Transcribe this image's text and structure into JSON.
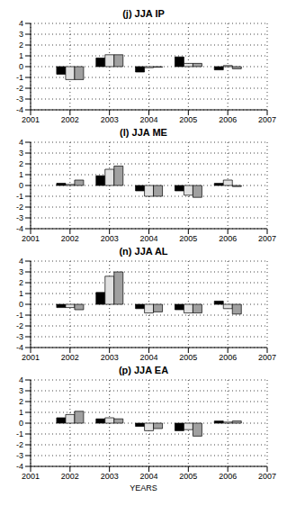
{
  "chart_data": [
    {
      "type": "bar",
      "title": "(j) JJA IP",
      "x": [
        2002,
        2003,
        2004,
        2005,
        2006
      ],
      "series": [
        {
          "color": "#000000",
          "values": [
            -0.7,
            0.8,
            -0.5,
            0.9,
            -0.3
          ]
        },
        {
          "color": "#e0e0e0",
          "values": [
            -1.2,
            1.1,
            -0.1,
            0.3,
            0.1
          ]
        },
        {
          "color": "#a0a0a0",
          "values": [
            -1.2,
            1.1,
            -0.05,
            0.3,
            -0.2
          ]
        }
      ],
      "xlim": [
        2001,
        2007
      ],
      "xticks": [
        2001,
        2002,
        2003,
        2004,
        2005,
        2006,
        2007
      ],
      "ylim": [
        -4,
        4
      ],
      "yticks": [
        -4,
        -3,
        -2,
        -1,
        0,
        1,
        2,
        3,
        4
      ],
      "grid": true
    },
    {
      "type": "bar",
      "title": "(l) JJA ME",
      "x": [
        2002,
        2003,
        2004,
        2005,
        2006
      ],
      "series": [
        {
          "color": "#000000",
          "values": [
            0.2,
            0.9,
            -0.5,
            -0.5,
            0.2
          ]
        },
        {
          "color": "#e0e0e0",
          "values": [
            0.1,
            1.5,
            -1.0,
            -0.9,
            0.5
          ]
        },
        {
          "color": "#a0a0a0",
          "values": [
            0.5,
            1.8,
            -1.0,
            -1.1,
            -0.1
          ]
        }
      ],
      "xlim": [
        2001,
        2007
      ],
      "xticks": [
        2001,
        2002,
        2003,
        2004,
        2005,
        2006,
        2007
      ],
      "ylim": [
        -4,
        4
      ],
      "yticks": [
        -4,
        -3,
        -2,
        -1,
        0,
        1,
        2,
        3,
        4
      ],
      "grid": true
    },
    {
      "type": "bar",
      "title": "(n) JJA AL",
      "x": [
        2002,
        2003,
        2004,
        2005,
        2006
      ],
      "series": [
        {
          "color": "#000000",
          "values": [
            -0.3,
            1.1,
            -0.4,
            -0.5,
            0.3
          ]
        },
        {
          "color": "#e0e0e0",
          "values": [
            -0.3,
            2.6,
            -0.8,
            -0.8,
            -0.4
          ]
        },
        {
          "color": "#a0a0a0",
          "values": [
            -0.5,
            3.0,
            -0.7,
            -0.8,
            -0.9
          ]
        }
      ],
      "xlim": [
        2001,
        2007
      ],
      "xticks": [
        2001,
        2002,
        2003,
        2004,
        2005,
        2006,
        2007
      ],
      "ylim": [
        -4,
        4
      ],
      "yticks": [
        -4,
        -3,
        -2,
        -1,
        0,
        1,
        2,
        3,
        4
      ],
      "grid": true
    },
    {
      "type": "bar",
      "title": "(p) JJA EA",
      "x_label": "YEARS",
      "x": [
        2002,
        2003,
        2004,
        2005,
        2006
      ],
      "series": [
        {
          "color": "#000000",
          "values": [
            0.5,
            0.4,
            -0.3,
            -0.7,
            0.2
          ]
        },
        {
          "color": "#e0e0e0",
          "values": [
            0.8,
            0.5,
            -0.7,
            -0.6,
            0.1
          ]
        },
        {
          "color": "#a0a0a0",
          "values": [
            1.1,
            0.4,
            -0.5,
            -1.2,
            0.2
          ]
        }
      ],
      "xlim": [
        2001,
        2007
      ],
      "xticks": [
        2001,
        2002,
        2003,
        2004,
        2005,
        2006,
        2007
      ],
      "ylim": [
        -4,
        4
      ],
      "yticks": [
        -4,
        -3,
        -2,
        -1,
        0,
        1,
        2,
        3,
        4
      ],
      "grid": true
    }
  ]
}
